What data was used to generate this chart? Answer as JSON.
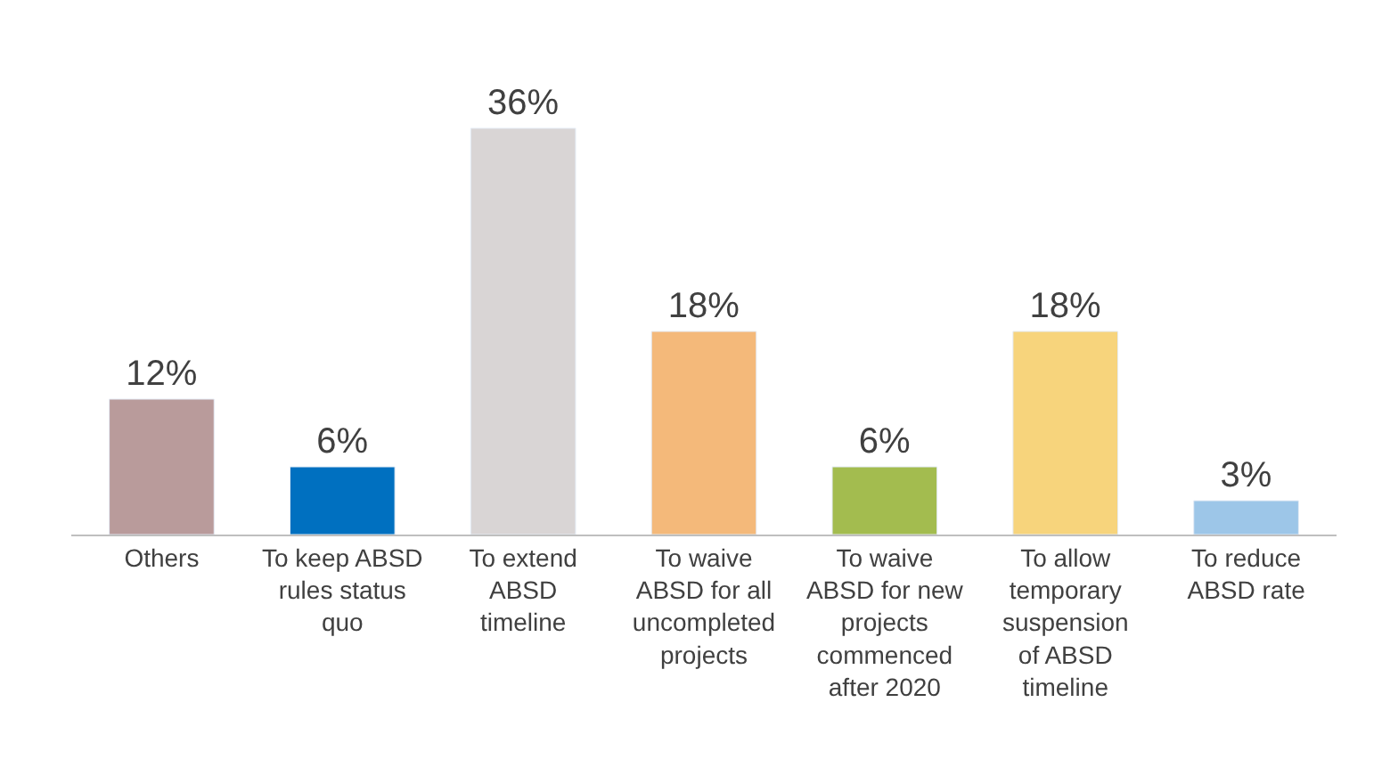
{
  "chart_data": {
    "type": "bar",
    "categories": [
      "Others",
      "To keep ABSD rules status quo",
      "To extend ABSD timeline",
      "To waive ABSD for all uncompleted projects",
      "To waive ABSD for new projects commenced after 2020",
      "To allow temporary suspension of ABSD timeline",
      "To reduce ABSD rate"
    ],
    "values": [
      12,
      6,
      36,
      18,
      6,
      18,
      3
    ],
    "value_labels": [
      "12%",
      "6%",
      "36%",
      "18%",
      "6%",
      "18%",
      "3%"
    ],
    "colors": [
      "#b99b9b",
      "#0070c0",
      "#d9d5d5",
      "#f4b97a",
      "#a3bc4f",
      "#f7d47c",
      "#9dc6e8"
    ]
  }
}
